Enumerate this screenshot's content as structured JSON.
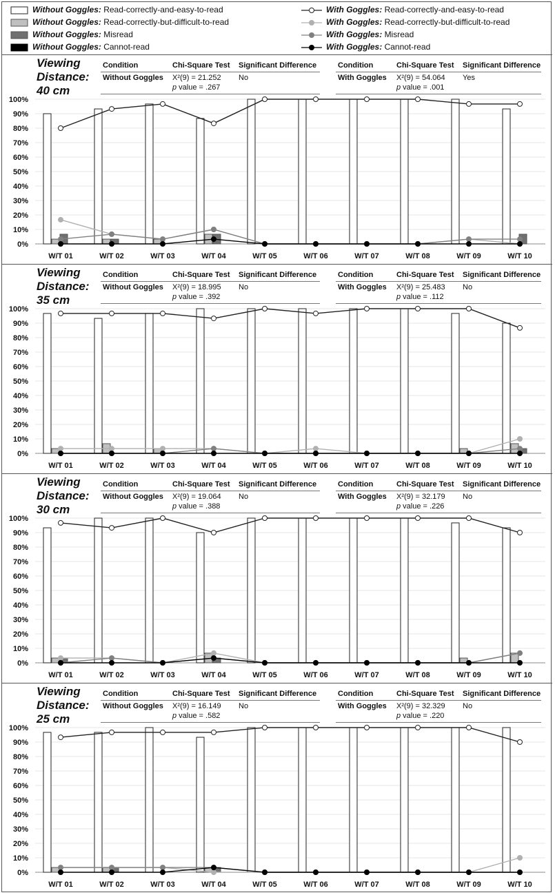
{
  "legend": [
    {
      "cond": "Without Goggles:",
      "label": "Read-correctly-and-easy-to-read",
      "kind": "bar",
      "color": "#ffffff"
    },
    {
      "cond": "Without Goggles:",
      "label": "Read-correctly-but-difficult-to-read",
      "kind": "bar",
      "color": "#c0c0c0"
    },
    {
      "cond": "Without Goggles:",
      "label": "Misread",
      "kind": "bar",
      "color": "#707070"
    },
    {
      "cond": "Without Goggles:",
      "label": "Cannot-read",
      "kind": "bar",
      "color": "#000000"
    },
    {
      "cond": "With Goggles:",
      "label": "Read-correctly-and-easy-to-read",
      "kind": "line",
      "color": "#ffffff"
    },
    {
      "cond": "With Goggles:",
      "label": "Read-correctly-but-difficult-to-read",
      "kind": "line",
      "color": "#b0b0b0"
    },
    {
      "cond": "With Goggles:",
      "label": "Misread",
      "kind": "line",
      "color": "#808080"
    },
    {
      "cond": "With Goggles:",
      "label": "Cannot-read",
      "kind": "line",
      "color": "#000000"
    }
  ],
  "stat_headers": {
    "condition": "Condition",
    "test": "Chi-Square Test",
    "sig": "Significant Difference"
  },
  "chart_data": [
    {
      "type": "bar",
      "viewing_label": "Viewing",
      "distance_label": "Distance:",
      "distance": "40 cm",
      "ylim": [
        0,
        100
      ],
      "yticks": [
        "0%",
        "10%",
        "20%",
        "30%",
        "40%",
        "50%",
        "60%",
        "70%",
        "80%",
        "90%",
        "100%"
      ],
      "categories": [
        "W/T 01",
        "W/T 02",
        "W/T 03",
        "W/T 04",
        "W/T 05",
        "W/T 06",
        "W/T 07",
        "W/T 08",
        "W/T 09",
        "W/T 10"
      ],
      "stats": [
        {
          "condition": "Without Goggles",
          "chi": "X²(9) = 21.252",
          "p_label": "p",
          "p": " value = .267",
          "sig": "No"
        },
        {
          "condition": "With Goggles",
          "chi": "X²(9) = 54.064",
          "p_label": "p",
          "p": " value = .001",
          "sig": "Yes"
        }
      ],
      "series": [
        {
          "name": "Without Goggles: Read-correctly-and-easy-to-read",
          "kind": "bar",
          "values": [
            90,
            93.3,
            96.7,
            86.7,
            100,
            100,
            100,
            100,
            100,
            93.3
          ]
        },
        {
          "name": "Without Goggles: Read-correctly-but-difficult-to-read",
          "kind": "bar",
          "values": [
            3.3,
            3.3,
            3.3,
            6.7,
            0,
            0,
            0,
            0,
            0,
            0
          ]
        },
        {
          "name": "Without Goggles: Misread",
          "kind": "bar",
          "values": [
            6.7,
            3.3,
            0,
            6.7,
            0,
            0,
            0,
            0,
            0,
            6.7
          ]
        },
        {
          "name": "Without Goggles: Cannot-read",
          "kind": "bar",
          "values": [
            0,
            0,
            0,
            0,
            0,
            0,
            0,
            0,
            0,
            0
          ]
        },
        {
          "name": "With Goggles: Read-correctly-and-easy-to-read",
          "kind": "line",
          "values": [
            80,
            93.3,
            96.7,
            83.3,
            100,
            100,
            100,
            100,
            96.7,
            96.7
          ]
        },
        {
          "name": "With Goggles: Read-correctly-but-difficult-to-read",
          "kind": "line",
          "values": [
            16.7,
            6.7,
            3.3,
            10,
            0,
            0,
            0,
            0,
            3.3,
            0
          ]
        },
        {
          "name": "With Goggles: Misread",
          "kind": "line",
          "values": [
            3.3,
            6.7,
            3.3,
            10,
            0,
            0,
            0,
            0,
            3.3,
            3.3
          ]
        },
        {
          "name": "With Goggles: Cannot-read",
          "kind": "line",
          "values": [
            0,
            0,
            0,
            3.3,
            0,
            0,
            0,
            0,
            0,
            0
          ]
        }
      ]
    },
    {
      "type": "bar",
      "viewing_label": "Viewing",
      "distance_label": "Distance:",
      "distance": "35 cm",
      "ylim": [
        0,
        100
      ],
      "yticks": [
        "0%",
        "10%",
        "20%",
        "30%",
        "40%",
        "50%",
        "60%",
        "70%",
        "80%",
        "90%",
        "100%"
      ],
      "categories": [
        "W/T 01",
        "W/T 02",
        "W/T 03",
        "W/T 04",
        "W/T 05",
        "W/T 06",
        "W/T 07",
        "W/T 08",
        "W/T 09",
        "W/T 10"
      ],
      "stats": [
        {
          "condition": "Without Goggles",
          "chi": "X²(9) = 18.995",
          "p_label": "p",
          "p": " value = .392",
          "sig": "No"
        },
        {
          "condition": "With Goggles",
          "chi": "X²(9) = 25.483",
          "p_label": "p",
          "p": " value = .112",
          "sig": "No"
        }
      ],
      "series": [
        {
          "name": "Without Goggles: Read-correctly-and-easy-to-read",
          "kind": "bar",
          "values": [
            96.7,
            93.3,
            96.7,
            100,
            100,
            100,
            100,
            100,
            96.7,
            90
          ]
        },
        {
          "name": "Without Goggles: Read-correctly-but-difficult-to-read",
          "kind": "bar",
          "values": [
            3.3,
            6.7,
            3.3,
            0,
            0,
            0,
            0,
            0,
            3.3,
            6.7
          ]
        },
        {
          "name": "Without Goggles: Misread",
          "kind": "bar",
          "values": [
            0,
            0,
            0,
            0,
            0,
            0,
            0,
            0,
            0,
            3.3
          ]
        },
        {
          "name": "Without Goggles: Cannot-read",
          "kind": "bar",
          "values": [
            0,
            0,
            0,
            0,
            0,
            0,
            0,
            0,
            0,
            0
          ]
        },
        {
          "name": "With Goggles: Read-correctly-and-easy-to-read",
          "kind": "line",
          "values": [
            96.7,
            96.7,
            96.7,
            93.3,
            100,
            96.7,
            100,
            100,
            100,
            86.7
          ]
        },
        {
          "name": "With Goggles: Read-correctly-but-difficult-to-read",
          "kind": "line",
          "values": [
            3.3,
            3.3,
            3.3,
            3.3,
            0,
            3.3,
            0,
            0,
            0,
            10
          ]
        },
        {
          "name": "With Goggles: Misread",
          "kind": "line",
          "values": [
            0,
            0,
            0,
            3.3,
            0,
            0,
            0,
            0,
            0,
            3.3
          ]
        },
        {
          "name": "With Goggles: Cannot-read",
          "kind": "line",
          "values": [
            0,
            0,
            0,
            0,
            0,
            0,
            0,
            0,
            0,
            0
          ]
        }
      ]
    },
    {
      "type": "bar",
      "viewing_label": "Viewing",
      "distance_label": "Distance:",
      "distance": "30 cm",
      "ylim": [
        0,
        100
      ],
      "yticks": [
        "0%",
        "10%",
        "20%",
        "30%",
        "40%",
        "50%",
        "60%",
        "70%",
        "80%",
        "90%",
        "100%"
      ],
      "categories": [
        "W/T 01",
        "W/T 02",
        "W/T 03",
        "W/T 04",
        "W/T 05",
        "W/T 06",
        "W/T 07",
        "W/T 08",
        "W/T 09",
        "W/T 10"
      ],
      "stats": [
        {
          "condition": "Without Goggles",
          "chi": "X²(9) = 19.064",
          "p_label": "p",
          "p": " value = .388",
          "sig": "No"
        },
        {
          "condition": "With Goggles",
          "chi": "X²(9) = 32.179",
          "p_label": "p",
          "p": " value = .226",
          "sig": "No"
        }
      ],
      "series": [
        {
          "name": "Without Goggles: Read-correctly-and-easy-to-read",
          "kind": "bar",
          "values": [
            93.3,
            100,
            100,
            90,
            100,
            100,
            100,
            100,
            96.7,
            93.3
          ]
        },
        {
          "name": "Without Goggles: Read-correctly-but-difficult-to-read",
          "kind": "bar",
          "values": [
            3.3,
            0,
            0,
            6.7,
            0,
            0,
            0,
            0,
            3.3,
            6.7
          ]
        },
        {
          "name": "Without Goggles: Misread",
          "kind": "bar",
          "values": [
            3.3,
            0,
            0,
            3.3,
            0,
            0,
            0,
            0,
            0,
            0
          ]
        },
        {
          "name": "Without Goggles: Cannot-read",
          "kind": "bar",
          "values": [
            0,
            0,
            0,
            0,
            0,
            0,
            0,
            0,
            0,
            0
          ]
        },
        {
          "name": "With Goggles: Read-correctly-and-easy-to-read",
          "kind": "line",
          "values": [
            96.7,
            93.3,
            100,
            90,
            100,
            100,
            100,
            100,
            100,
            90
          ]
        },
        {
          "name": "With Goggles: Read-correctly-but-difficult-to-read",
          "kind": "line",
          "values": [
            3.3,
            3.3,
            0,
            6.7,
            0,
            0,
            0,
            0,
            0,
            6.7
          ]
        },
        {
          "name": "With Goggles: Misread",
          "kind": "line",
          "values": [
            0,
            3.3,
            0,
            3.3,
            0,
            0,
            0,
            0,
            0,
            6.7
          ]
        },
        {
          "name": "With Goggles: Cannot-read",
          "kind": "line",
          "values": [
            0,
            0,
            0,
            3.3,
            0,
            0,
            0,
            0,
            0,
            0
          ]
        }
      ]
    },
    {
      "type": "bar",
      "viewing_label": "Viewing",
      "distance_label": "Distance:",
      "distance": "25 cm",
      "ylim": [
        0,
        100
      ],
      "yticks": [
        "0%",
        "10%",
        "20%",
        "30%",
        "40%",
        "50%",
        "60%",
        "70%",
        "80%",
        "90%",
        "100%"
      ],
      "categories": [
        "W/T 01",
        "W/T 02",
        "W/T 03",
        "W/T 04",
        "W/T 05",
        "W/T 06",
        "W/T 07",
        "W/T 08",
        "W/T 09",
        "W/T 10"
      ],
      "stats": [
        {
          "condition": "Without Goggles",
          "chi": "X²(9) = 16.149",
          "p_label": "p",
          "p": " value = .582",
          "sig": "No"
        },
        {
          "condition": "With Goggles",
          "chi": "X²(9) = 32.329",
          "p_label": "p",
          "p": " value = .220",
          "sig": "No"
        }
      ],
      "series": [
        {
          "name": "Without Goggles: Read-correctly-and-easy-to-read",
          "kind": "bar",
          "values": [
            96.7,
            96.7,
            100,
            93.3,
            100,
            100,
            100,
            100,
            100,
            100
          ]
        },
        {
          "name": "Without Goggles: Read-correctly-but-difficult-to-read",
          "kind": "bar",
          "values": [
            3.3,
            3.3,
            0,
            3.3,
            0,
            0,
            0,
            0,
            0,
            0
          ]
        },
        {
          "name": "Without Goggles: Misread",
          "kind": "bar",
          "values": [
            0,
            3.3,
            0,
            3.3,
            0,
            0,
            0,
            0,
            0,
            0
          ]
        },
        {
          "name": "Without Goggles: Cannot-read",
          "kind": "bar",
          "values": [
            0,
            0,
            0,
            0,
            0,
            0,
            0,
            0,
            0,
            0
          ]
        },
        {
          "name": "With Goggles: Read-correctly-and-easy-to-read",
          "kind": "line",
          "values": [
            93.3,
            96.7,
            96.7,
            96.7,
            100,
            100,
            100,
            100,
            100,
            90
          ]
        },
        {
          "name": "With Goggles: Read-correctly-but-difficult-to-read",
          "kind": "line",
          "values": [
            3.3,
            3.3,
            3.3,
            0,
            0,
            0,
            0,
            0,
            0,
            10
          ]
        },
        {
          "name": "With Goggles: Misread",
          "kind": "line",
          "values": [
            3.3,
            3.3,
            3.3,
            3.3,
            0,
            0,
            0,
            0,
            0,
            0
          ]
        },
        {
          "name": "With Goggles: Cannot-read",
          "kind": "line",
          "values": [
            0,
            0,
            0,
            3.3,
            0,
            0,
            0,
            0,
            0,
            0
          ]
        }
      ]
    }
  ]
}
